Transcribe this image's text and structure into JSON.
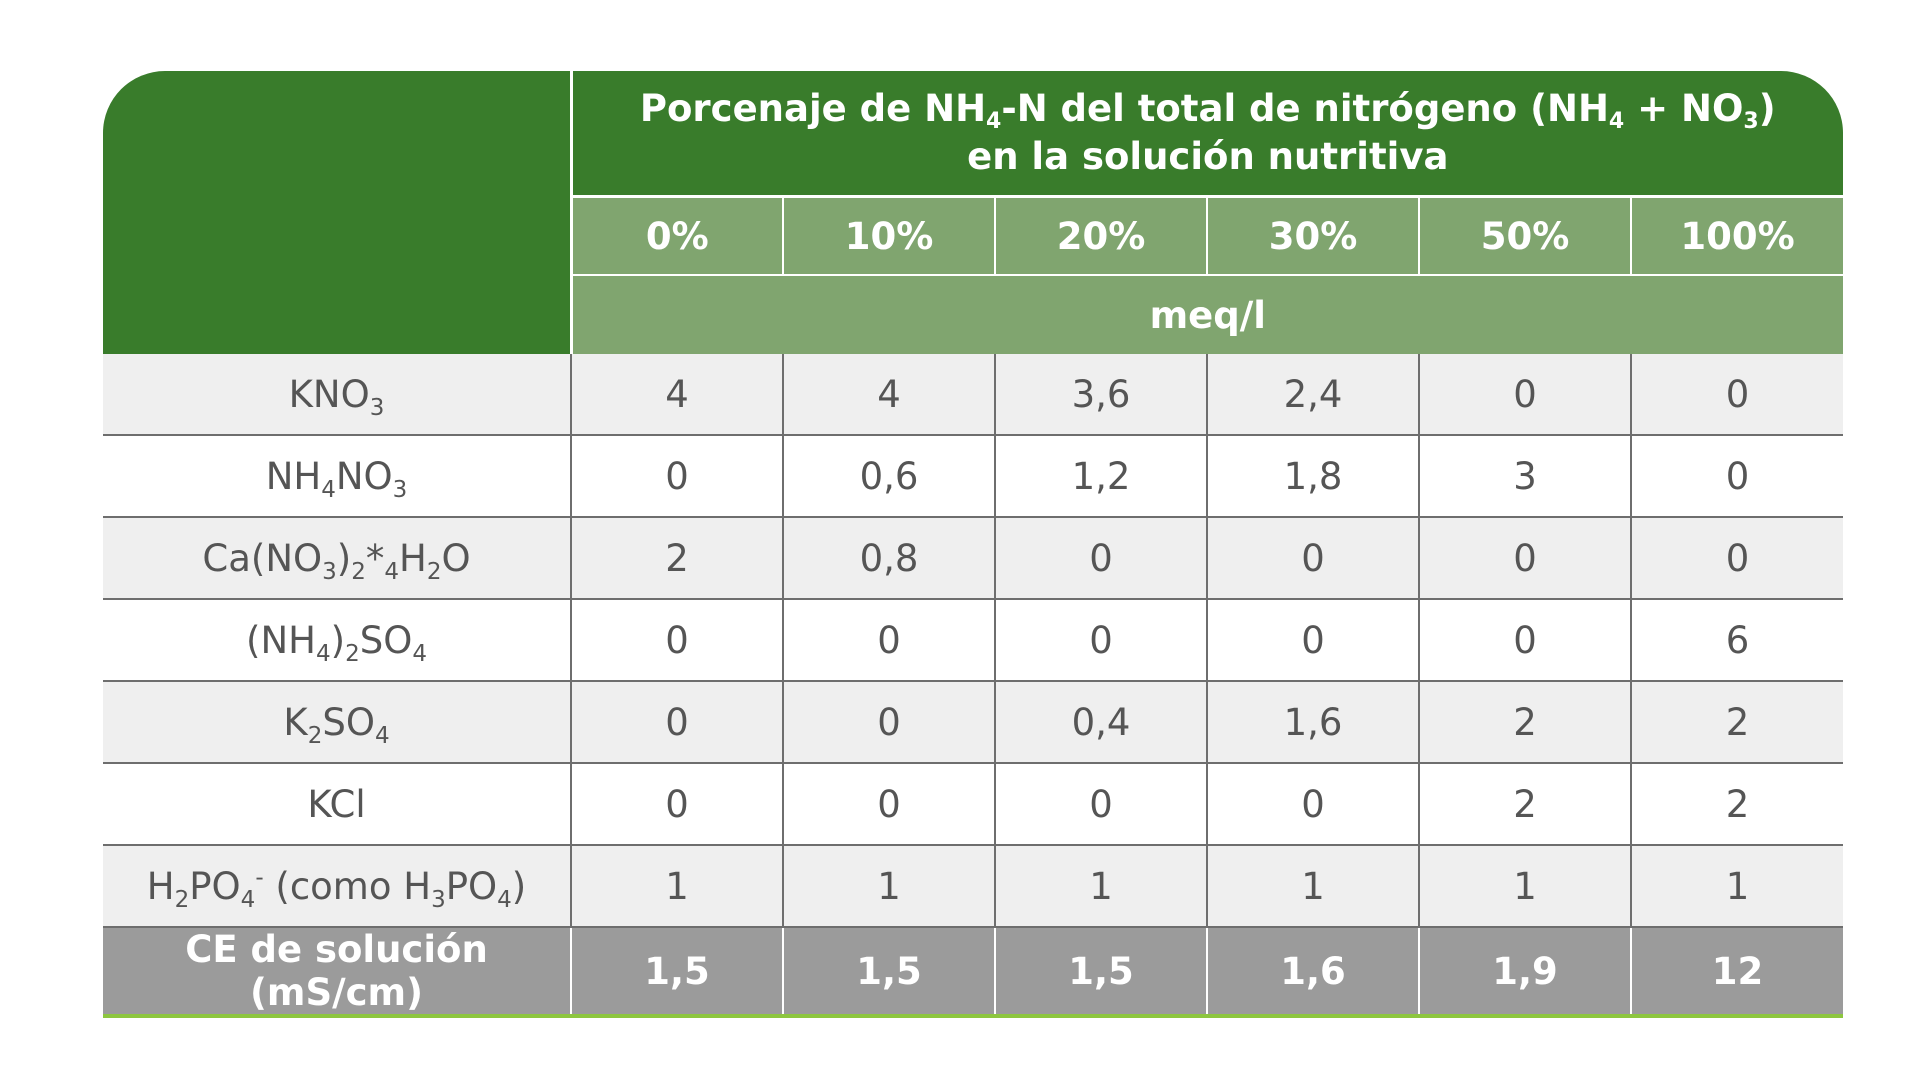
{
  "header": {
    "title_line1_parts": [
      "Porcenaje de NH",
      "4",
      "-N del total de nitrógeno (NH",
      "4",
      " + NO",
      "3",
      ")"
    ],
    "title_line2": "en la solución nutritiva",
    "percent_columns": [
      "0%",
      "10%",
      "20%",
      "30%",
      "50%",
      "100%"
    ],
    "unit": "meq/l"
  },
  "rows": [
    {
      "label_parts": [
        [
          "t",
          "KNO"
        ],
        [
          "b",
          "3"
        ]
      ],
      "values": [
        "4",
        "4",
        "3,6",
        "2,4",
        "0",
        "0"
      ]
    },
    {
      "label_parts": [
        [
          "t",
          "NH"
        ],
        [
          "b",
          "4"
        ],
        [
          "t",
          "NO"
        ],
        [
          "b",
          "3"
        ]
      ],
      "values": [
        "0",
        "0,6",
        "1,2",
        "1,8",
        "3",
        "0"
      ]
    },
    {
      "label_parts": [
        [
          "t",
          "Ca(NO"
        ],
        [
          "b",
          "3"
        ],
        [
          "t",
          ")"
        ],
        [
          "b",
          "2"
        ],
        [
          "t",
          "*"
        ],
        [
          "b",
          "4"
        ],
        [
          "t",
          "H"
        ],
        [
          "b",
          "2"
        ],
        [
          "t",
          "O"
        ]
      ],
      "values": [
        "2",
        "0,8",
        "0",
        "0",
        "0",
        "0"
      ]
    },
    {
      "label_parts": [
        [
          "t",
          "(NH"
        ],
        [
          "b",
          "4"
        ],
        [
          "t",
          ")"
        ],
        [
          "b",
          "2"
        ],
        [
          "t",
          "SO"
        ],
        [
          "b",
          "4"
        ]
      ],
      "values": [
        "0",
        "0",
        "0",
        "0",
        "0",
        "6"
      ]
    },
    {
      "label_parts": [
        [
          "t",
          "K"
        ],
        [
          "b",
          "2"
        ],
        [
          "t",
          "SO"
        ],
        [
          "b",
          "4"
        ]
      ],
      "values": [
        "0",
        "0",
        "0,4",
        "1,6",
        "2",
        "2"
      ]
    },
    {
      "label_parts": [
        [
          "t",
          "KCl"
        ]
      ],
      "values": [
        "0",
        "0",
        "0",
        "0",
        "2",
        "2"
      ]
    },
    {
      "label_parts": [
        [
          "t",
          "H"
        ],
        [
          "b",
          "2"
        ],
        [
          "t",
          "PO"
        ],
        [
          "b",
          "4"
        ],
        [
          "p",
          "-"
        ],
        [
          "t",
          " (como H"
        ],
        [
          "b",
          "3"
        ],
        [
          "t",
          "PO"
        ],
        [
          "b",
          "4"
        ],
        [
          "t",
          ")"
        ]
      ],
      "values": [
        "1",
        "1",
        "1",
        "1",
        "1",
        "1"
      ]
    }
  ],
  "total_row": {
    "label": "CE de solución (mS/cm)",
    "values": [
      "1,5",
      "1,5",
      "1,5",
      "1,6",
      "1,9",
      "12"
    ]
  },
  "colors": {
    "header_dark_green": "#397c2b",
    "header_light_green": "#80a56f",
    "row_alt_gray": "#efefef",
    "total_row_gray": "#9b9b9b",
    "bottom_rule_green": "#8dc63f"
  }
}
